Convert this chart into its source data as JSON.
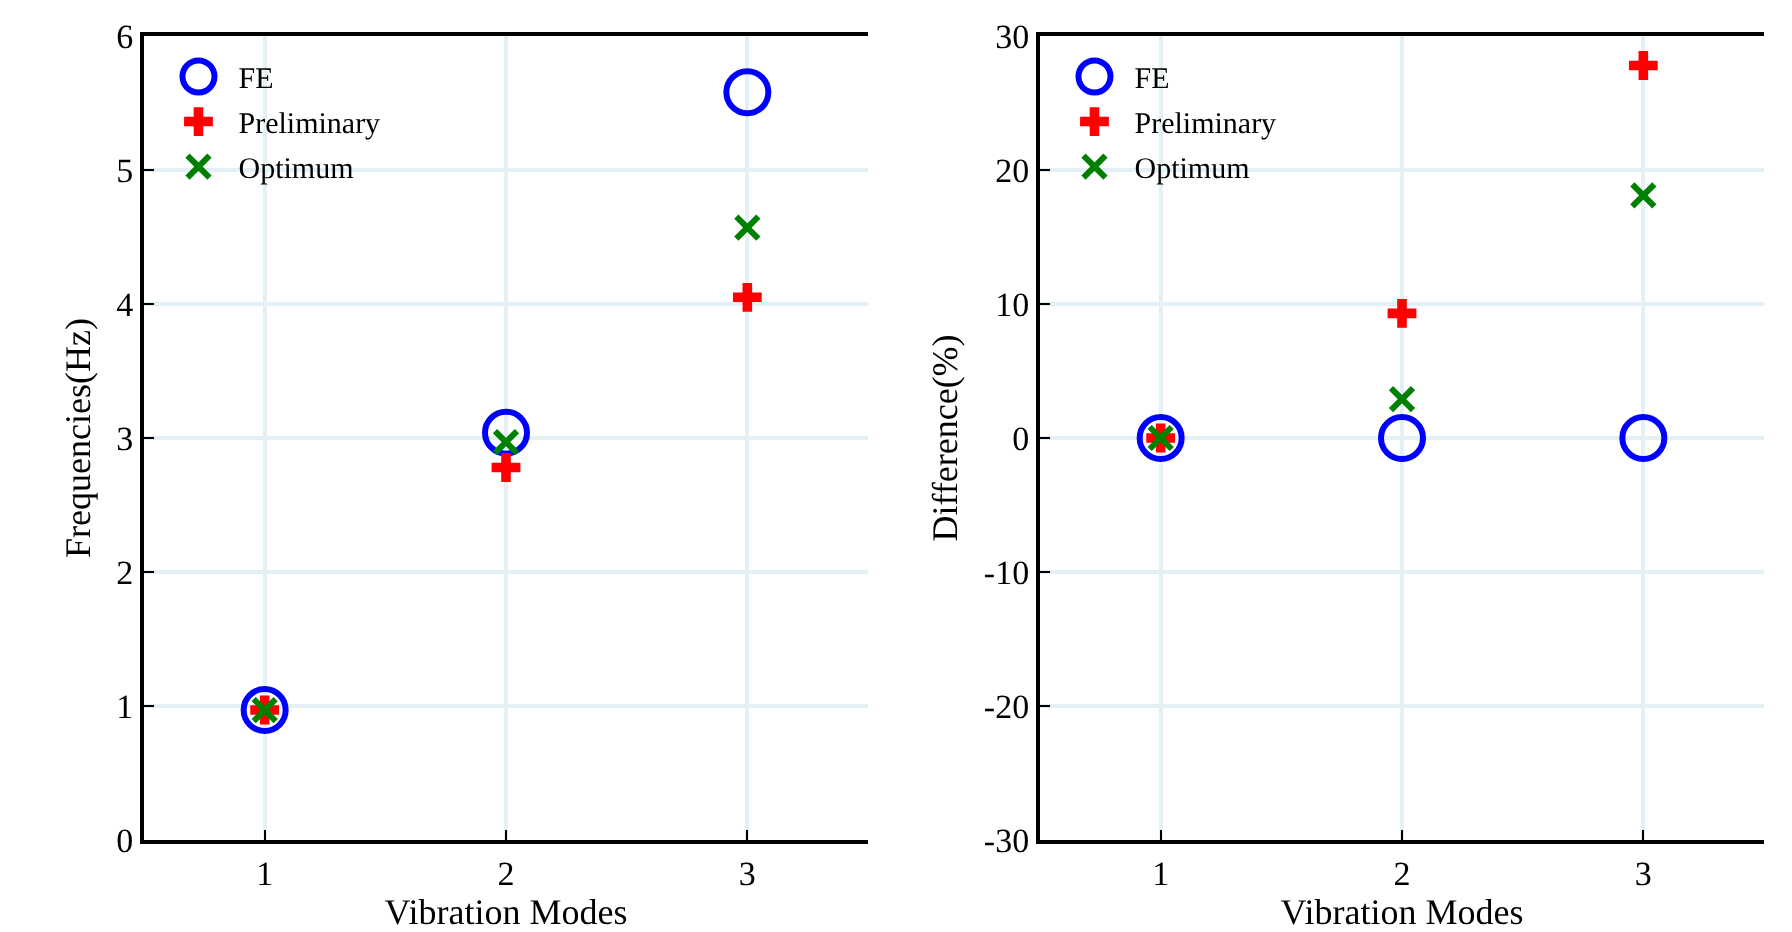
{
  "chart_data": [
    {
      "type": "scatter",
      "xlabel": "Vibration Modes",
      "ylabel": "Frequencies(Hz)",
      "x": [
        1,
        2,
        3
      ],
      "xlim": [
        0.5,
        3.5
      ],
      "xticks": [
        1,
        2,
        3
      ],
      "ylim": [
        0,
        6
      ],
      "yticks": [
        0,
        1,
        2,
        3,
        4,
        5,
        6
      ],
      "grid": true,
      "legend": "top left",
      "series": [
        {
          "name": "FE",
          "color": "#0000ff",
          "marker": "circle",
          "values": [
            0.97,
            3.04,
            5.58
          ]
        },
        {
          "name": "Preliminary",
          "color": "#ff0000",
          "marker": "cross",
          "values": [
            0.97,
            2.78,
            4.05
          ]
        },
        {
          "name": "Optimum",
          "color": "#008000",
          "marker": "x",
          "values": [
            0.97,
            2.97,
            4.57
          ]
        }
      ]
    },
    {
      "type": "scatter",
      "xlabel": "Vibration Modes",
      "ylabel": "Difference(%)",
      "x": [
        1,
        2,
        3
      ],
      "xlim": [
        0.5,
        3.5
      ],
      "xticks": [
        1,
        2,
        3
      ],
      "ylim": [
        -30,
        30
      ],
      "yticks": [
        -30,
        -20,
        -10,
        0,
        10,
        20,
        30
      ],
      "grid": true,
      "legend": "top left",
      "series": [
        {
          "name": "FE",
          "color": "#0000ff",
          "marker": "circle",
          "values": [
            0,
            0,
            0
          ]
        },
        {
          "name": "Preliminary",
          "color": "#ff0000",
          "marker": "cross",
          "values": [
            0,
            9.3,
            27.8
          ]
        },
        {
          "name": "Optimum",
          "color": "#008000",
          "marker": "x",
          "values": [
            0,
            2.9,
            18.1
          ]
        }
      ]
    }
  ]
}
